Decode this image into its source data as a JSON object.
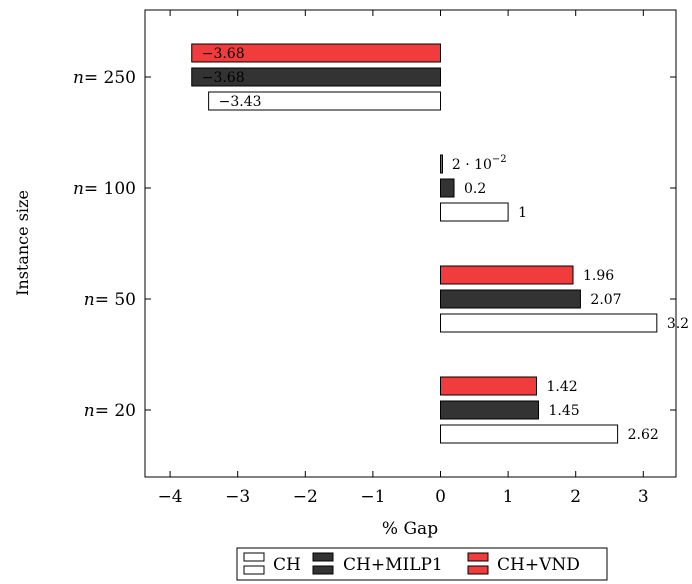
{
  "chart_data": {
    "type": "bar",
    "orientation": "horizontal",
    "xlabel": "% Gap",
    "ylabel": "Instance size",
    "xlim": [
      -4.3,
      3.6
    ],
    "x_ticks": [
      {
        "value": -4,
        "label": "−4"
      },
      {
        "value": -3,
        "label": "−3"
      },
      {
        "value": -2,
        "label": "−2"
      },
      {
        "value": -1,
        "label": "−1"
      },
      {
        "value": 0,
        "label": "0"
      },
      {
        "value": 1,
        "label": "1"
      },
      {
        "value": 2,
        "label": "2"
      },
      {
        "value": 3,
        "label": "3"
      }
    ],
    "categories": [
      {
        "prefix": "n",
        "suffix": "= 20"
      },
      {
        "prefix": "n",
        "suffix": "= 50"
      },
      {
        "prefix": "n",
        "suffix": "= 100"
      },
      {
        "prefix": "n",
        "suffix": "= 250"
      }
    ],
    "series": [
      {
        "name": "CH",
        "color": "#ffffff",
        "values": [
          2.62,
          3.2,
          1,
          -3.43
        ],
        "value_labels": [
          "2.62",
          "3.2",
          "1",
          "−3.43"
        ]
      },
      {
        "name": "CH+MILP1",
        "color": "#333333",
        "values": [
          1.45,
          2.07,
          0.2,
          -3.68
        ],
        "value_labels": [
          "1.45",
          "2.07",
          "0.2",
          "−3.68"
        ]
      },
      {
        "name": "CH+VND",
        "color": "#f03c3c",
        "values": [
          1.42,
          1.96,
          0.02,
          -3.68
        ],
        "value_labels": [
          "1.42",
          "1.96",
          "2 · 10",
          "−3.68"
        ],
        "value_label_superscripts": [
          "",
          "",
          "−2",
          ""
        ]
      }
    ],
    "legend": {
      "placement": "bottom-center"
    }
  }
}
